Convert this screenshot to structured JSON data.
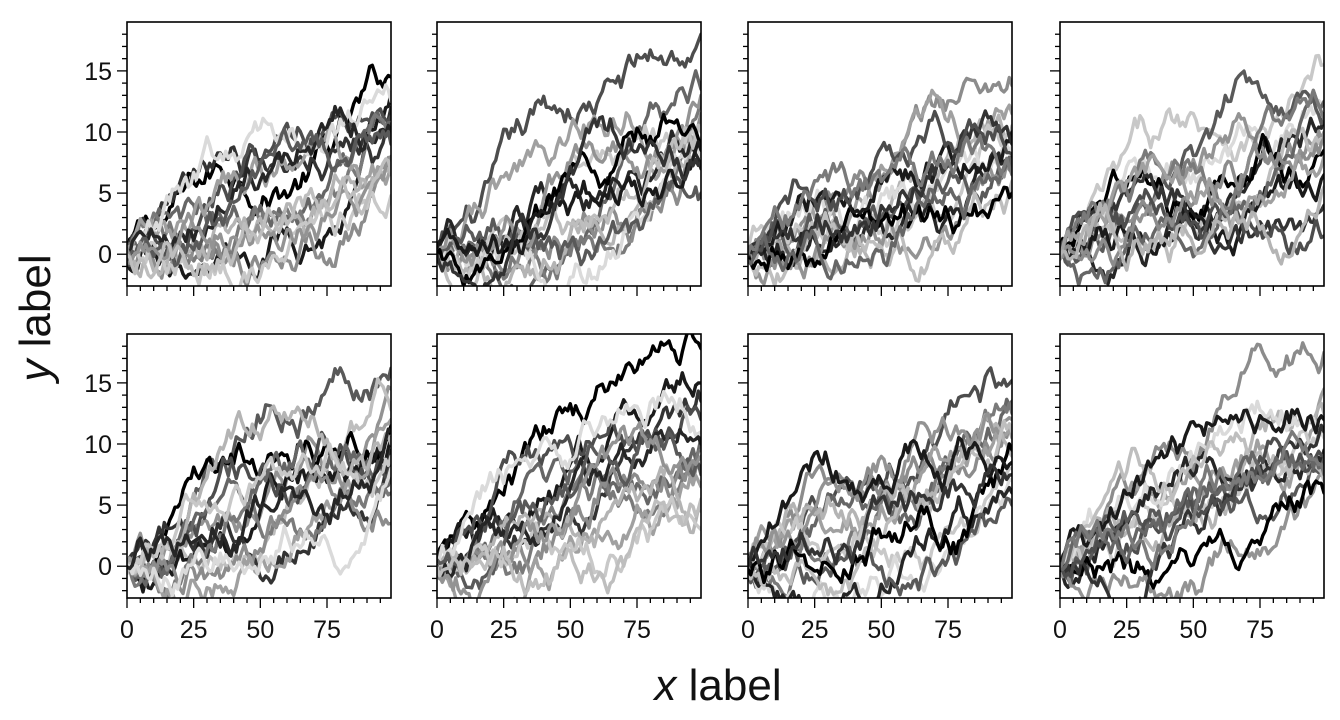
{
  "chart_data": {
    "type": "line",
    "panels_layout": {
      "rows": 2,
      "cols": 4
    },
    "shared_axes": true,
    "xlabel_var": "x",
    "xlabel_rest": " label",
    "ylabel_var": "y",
    "ylabel_rest": " label",
    "xlim": [
      0,
      99
    ],
    "ylim": [
      -2.6,
      19
    ],
    "xticks": [
      0,
      25,
      50,
      75
    ],
    "yticks": [
      0,
      5,
      10,
      15
    ],
    "x_tick_labels": [
      "0",
      "25",
      "50",
      "75"
    ],
    "y_tick_labels": [
      "0",
      "5",
      "10",
      "15"
    ],
    "grid": false,
    "legend": "none",
    "line_colors": "grayscale",
    "panels": [
      {
        "row": 0,
        "col": 0,
        "end_values": [
          14.5,
          13.2,
          12.0,
          11.3,
          10.5,
          9.5,
          8.0,
          7.2,
          6.5,
          4.8,
          12.5,
          10.0,
          9.0,
          7.5,
          6.8
        ]
      },
      {
        "row": 0,
        "col": 1,
        "end_values": [
          18.0,
          13.5,
          12.8,
          11.5,
          10.5,
          9.5,
          8.8,
          8.0,
          7.0,
          5.0,
          13.0,
          10.0,
          9.0,
          8.5,
          7.5
        ]
      },
      {
        "row": 0,
        "col": 2,
        "end_values": [
          13.8,
          11.5,
          10.5,
          9.5,
          8.8,
          8.0,
          7.5,
          6.8,
          6.0,
          5.0,
          10.0,
          9.0,
          8.2,
          7.0,
          6.5
        ]
      },
      {
        "row": 0,
        "col": 3,
        "end_values": [
          15.5,
          12.0,
          11.5,
          10.8,
          10.0,
          9.0,
          8.5,
          6.5,
          4.0,
          1.5,
          12.5,
          11.0,
          9.5,
          8.0,
          5.5
        ]
      },
      {
        "row": 1,
        "col": 0,
        "end_values": [
          16.2,
          14.5,
          12.8,
          11.5,
          10.5,
          9.5,
          8.5,
          7.5,
          6.0,
          3.5,
          12.0,
          10.0,
          9.0,
          8.0,
          11.0
        ]
      },
      {
        "row": 1,
        "col": 1,
        "end_values": [
          17.8,
          15.0,
          13.5,
          12.0,
          10.5,
          9.5,
          8.0,
          6.5,
          4.5,
          3.0,
          11.0,
          10.0,
          7.5,
          9.0,
          5.5
        ]
      },
      {
        "row": 1,
        "col": 2,
        "end_values": [
          15.2,
          13.5,
          12.5,
          11.5,
          10.5,
          9.0,
          8.0,
          7.0,
          6.0,
          5.0,
          12.0,
          11.0,
          9.5,
          8.5,
          7.5
        ]
      },
      {
        "row": 1,
        "col": 3,
        "end_values": [
          17.5,
          14.5,
          12.5,
          11.5,
          10.5,
          9.5,
          8.8,
          8.0,
          7.0,
          6.0,
          12.0,
          11.0,
          9.0,
          8.0,
          7.5
        ]
      }
    ]
  }
}
